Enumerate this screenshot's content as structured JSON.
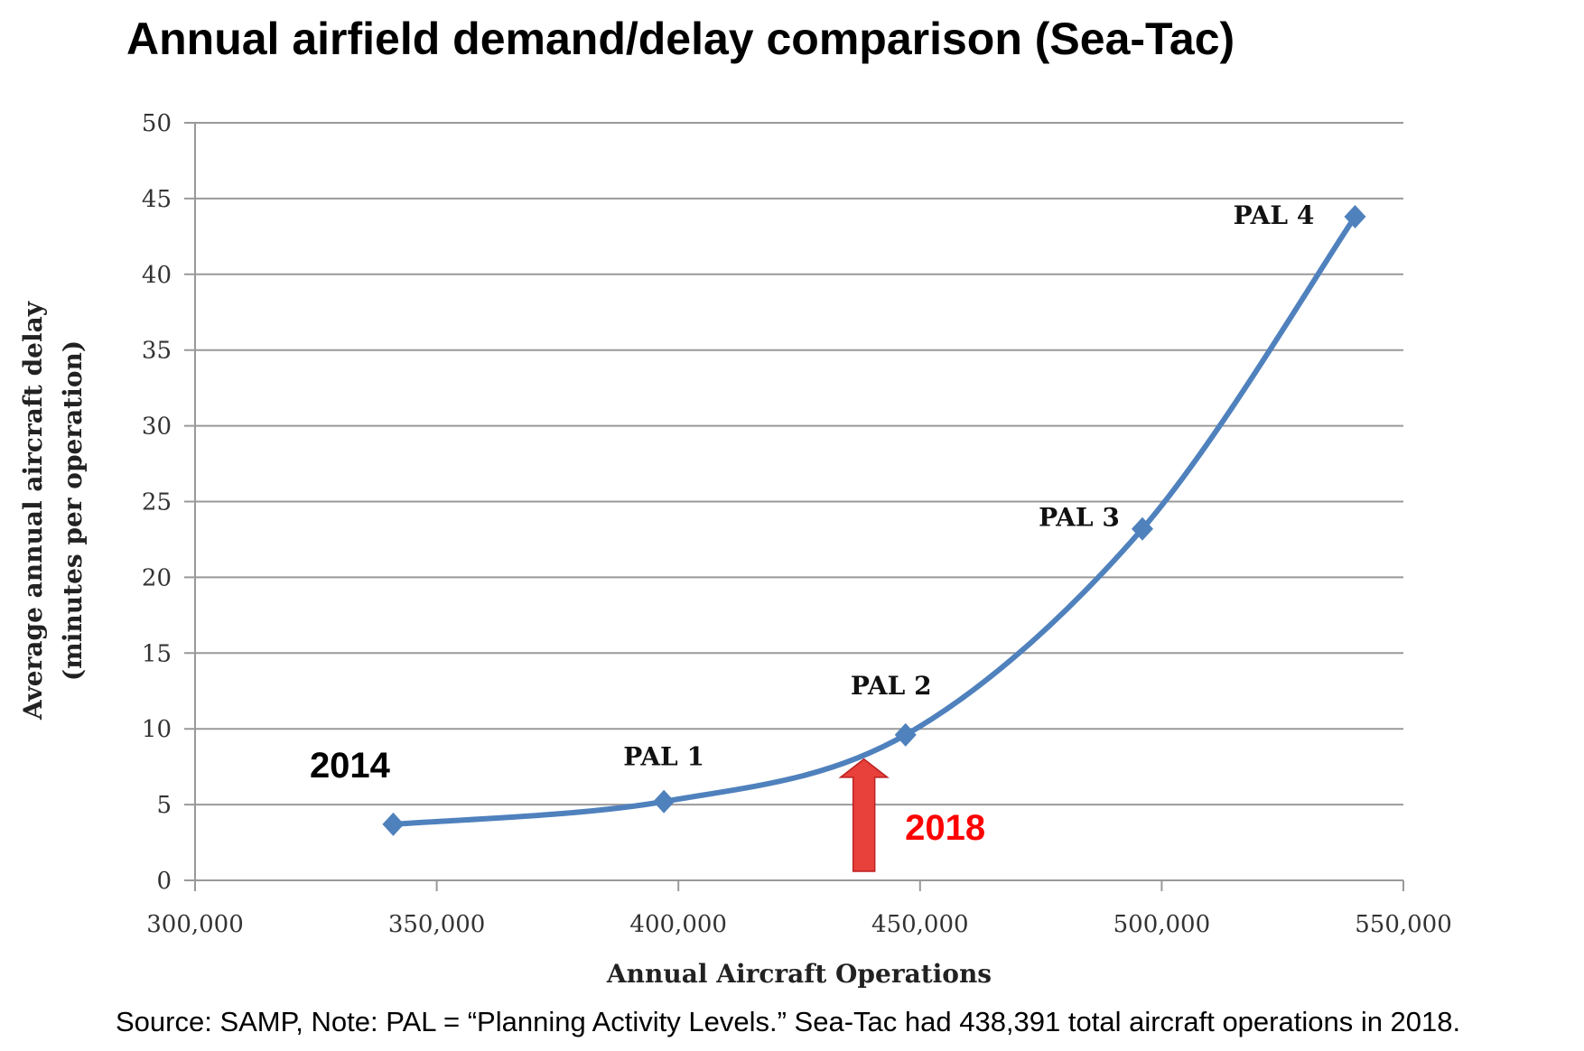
{
  "chart_data": {
    "type": "line",
    "title": "Annual airfield demand/delay comparison (Sea-Tac)",
    "xlabel": "Annual Aircraft Operations",
    "ylabel": [
      "Average annual aircraft delay",
      "(minutes per operation)"
    ],
    "xlim": [
      300000,
      550000
    ],
    "ylim": [
      0,
      50
    ],
    "xticks": [
      "300,000",
      "350,000",
      "400,000",
      "450,000",
      "500,000",
      "550,000"
    ],
    "xtick_values": [
      300000,
      350000,
      400000,
      450000,
      500000,
      550000
    ],
    "yticks": [
      0,
      5,
      10,
      15,
      20,
      25,
      30,
      35,
      40,
      45,
      50
    ],
    "grid": "horizontal",
    "series": [
      {
        "color": "#4f81bd",
        "marker": "diamond",
        "smooth": true,
        "points": [
          {
            "x": 341000,
            "y": 3.7,
            "label": "2014"
          },
          {
            "x": 397000,
            "y": 5.2,
            "label": "PAL 1"
          },
          {
            "x": 447000,
            "y": 9.6,
            "label": "PAL 2"
          },
          {
            "x": 496000,
            "y": 23.2,
            "label": "PAL 3"
          },
          {
            "x": 540000,
            "y": 43.8,
            "label": "PAL 4"
          }
        ]
      }
    ],
    "annotation": {
      "label": "2018",
      "x": 438391,
      "color": "#ff0000",
      "arrow_color": "#e8403a"
    },
    "footer": "Source: SAMP, Note: PAL = “Planning Activity Levels.” Sea-Tac had 438,391 total aircraft operations in 2018."
  }
}
